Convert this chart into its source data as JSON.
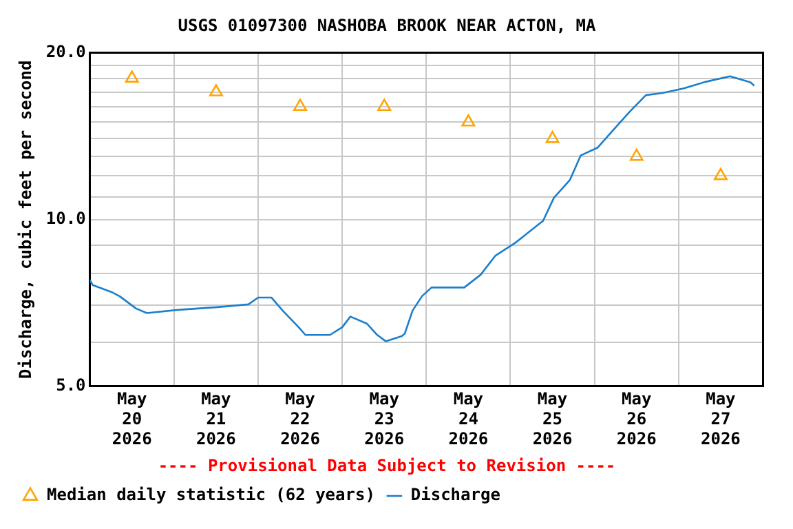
{
  "chart_data": {
    "type": "line",
    "title": "USGS 01097300 NASHOBA BROOK NEAR ACTON, MA",
    "ylabel": "Discharge, cubic feet per second",
    "annotations": [
      "---- Provisional Data Subject to Revision ----"
    ],
    "xlim": [
      "2026-05-20T00:00",
      "2026-05-28T00:00"
    ],
    "xticks": [
      {
        "value": "2026-05-20T12:00",
        "label": "May\n20\n2026"
      },
      {
        "value": "2026-05-21T00:00",
        "label": null
      },
      {
        "value": "2026-05-21T12:00",
        "label": "May\n21\n2026"
      },
      {
        "value": "2026-05-22T00:00",
        "label": null
      },
      {
        "value": "2026-05-22T12:00",
        "label": "May\n22\n2026"
      },
      {
        "value": "2026-05-23T00:00",
        "label": null
      },
      {
        "value": "2026-05-23T12:00",
        "label": "May\n23\n2026"
      },
      {
        "value": "2026-05-24T00:00",
        "label": null
      },
      {
        "value": "2026-05-24T12:00",
        "label": "May\n24\n2026"
      },
      {
        "value": "2026-05-25T00:00",
        "label": null
      },
      {
        "value": "2026-05-25T12:00",
        "label": "May\n25\n2026"
      },
      {
        "value": "2026-05-26T00:00",
        "label": null
      },
      {
        "value": "2026-05-26T12:00",
        "label": "May\n26\n2026"
      },
      {
        "value": "2026-05-27T00:00",
        "label": null
      },
      {
        "value": "2026-05-27T12:00",
        "label": "May\n27\n2026"
      }
    ],
    "ylim": [
      5,
      20
    ],
    "yticks": [
      {
        "value": 5,
        "label": "5.0"
      },
      {
        "value": 6,
        "label": null
      },
      {
        "value": 7,
        "label": null
      },
      {
        "value": 8,
        "label": null
      },
      {
        "value": 9,
        "label": null
      },
      {
        "value": 10,
        "label": "10.0"
      },
      {
        "value": 11,
        "label": null
      },
      {
        "value": 12,
        "label": null
      },
      {
        "value": 13,
        "label": null
      },
      {
        "value": 14,
        "label": null
      },
      {
        "value": 15,
        "label": null
      },
      {
        "value": 16,
        "label": null
      },
      {
        "value": 17,
        "label": null
      },
      {
        "value": 18,
        "label": null
      },
      {
        "value": 19,
        "label": null
      },
      {
        "value": 20,
        "label": "20.0"
      }
    ],
    "log": true,
    "grid": true,
    "legend": "bottom",
    "series": [
      {
        "name": "Median daily statistic (62 years)",
        "type": "scatter",
        "marker": "triangle",
        "color": "#ffa500",
        "x": [
          "2026-05-20T12:00",
          "2026-05-21T12:00",
          "2026-05-22T12:00",
          "2026-05-23T12:00",
          "2026-05-24T12:00",
          "2026-05-25T12:00",
          "2026-05-26T12:00",
          "2026-05-27T12:00"
        ],
        "values": [
          18,
          17,
          16,
          16,
          15,
          14,
          13,
          12
        ]
      },
      {
        "name": "Discharge",
        "type": "line",
        "marker": "none",
        "color": "#1b7fcc",
        "x": [
          "2026-05-20T00:00",
          "2026-05-20T00:45",
          "2026-05-20T06:10",
          "2026-05-20T08:30",
          "2026-05-20T13:10",
          "2026-05-20T16:15",
          "2026-05-21T01:10",
          "2026-05-21T12:25",
          "2026-05-21T21:15",
          "2026-05-22T00:00",
          "2026-05-22T03:50",
          "2026-05-22T07:00",
          "2026-05-22T11:35",
          "2026-05-22T13:30",
          "2026-05-22T20:30",
          "2026-05-23T00:00",
          "2026-05-23T02:20",
          "2026-05-23T07:00",
          "2026-05-23T10:00",
          "2026-05-23T12:25",
          "2026-05-23T17:00",
          "2026-05-23T17:50",
          "2026-05-23T20:05",
          "2026-05-23T22:50",
          "2026-05-24T01:30",
          "2026-05-24T10:50",
          "2026-05-24T15:30",
          "2026-05-24T19:45",
          "2026-05-25T01:30",
          "2026-05-25T09:20",
          "2026-05-25T12:25",
          "2026-05-25T17:00",
          "2026-05-25T20:05",
          "2026-05-26T00:50",
          "2026-05-26T05:25",
          "2026-05-26T10:00",
          "2026-05-26T14:40",
          "2026-05-26T19:25",
          "2026-05-27T01:30",
          "2026-05-27T07:40",
          "2026-05-27T14:40",
          "2026-05-27T20:30",
          "2026-05-27T21:35"
        ],
        "values": [
          7.78,
          7.62,
          7.4,
          7.27,
          6.91,
          6.78,
          6.87,
          6.95,
          7.03,
          7.23,
          7.23,
          6.85,
          6.39,
          6.19,
          6.19,
          6.39,
          6.68,
          6.49,
          6.19,
          6.03,
          6.16,
          6.22,
          6.85,
          7.28,
          7.54,
          7.54,
          7.95,
          8.61,
          9.09,
          9.95,
          10.95,
          11.8,
          13.06,
          13.48,
          14.53,
          15.65,
          16.78,
          16.93,
          17.26,
          17.73,
          18.15,
          17.7,
          17.45
        ]
      }
    ]
  }
}
